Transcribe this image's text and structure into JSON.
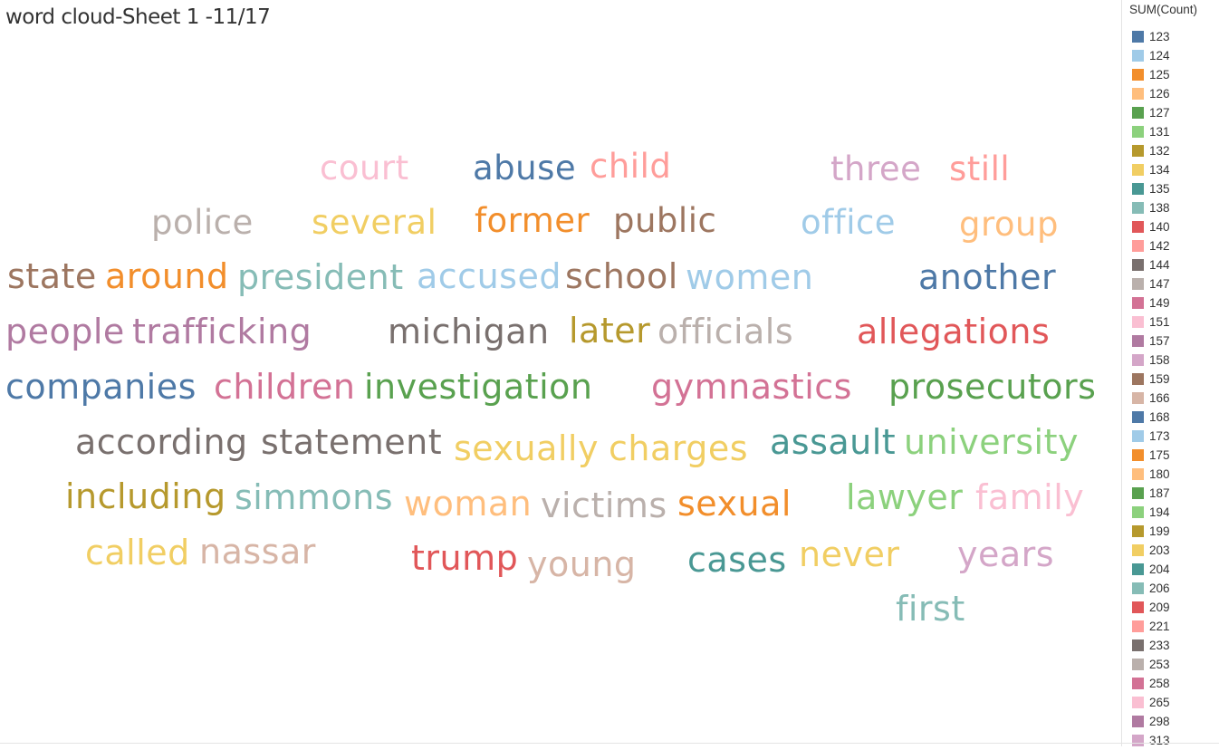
{
  "title": "word cloud-Sheet 1 -11/17",
  "chart_data": {
    "type": "word_cloud",
    "title": "word cloud-Sheet 1 -11/17",
    "legend_title": "SUM(Count)",
    "legend_placement": "right",
    "legend": [
      {
        "value": "123",
        "color": "#4e79a7"
      },
      {
        "value": "124",
        "color": "#a0cbe8"
      },
      {
        "value": "125",
        "color": "#f28e2b"
      },
      {
        "value": "126",
        "color": "#ffbe7d"
      },
      {
        "value": "127",
        "color": "#59a14f"
      },
      {
        "value": "131",
        "color": "#8cd17d"
      },
      {
        "value": "132",
        "color": "#b6992d"
      },
      {
        "value": "134",
        "color": "#f1ce63"
      },
      {
        "value": "135",
        "color": "#499894"
      },
      {
        "value": "138",
        "color": "#86bcb6"
      },
      {
        "value": "140",
        "color": "#e15759"
      },
      {
        "value": "142",
        "color": "#ff9d9a"
      },
      {
        "value": "144",
        "color": "#79706e"
      },
      {
        "value": "147",
        "color": "#bab0ac"
      },
      {
        "value": "149",
        "color": "#d37295"
      },
      {
        "value": "151",
        "color": "#fabfd2"
      },
      {
        "value": "157",
        "color": "#b07aa1"
      },
      {
        "value": "158",
        "color": "#d4a6c8"
      },
      {
        "value": "159",
        "color": "#9d7660"
      },
      {
        "value": "166",
        "color": "#d7b5a6"
      },
      {
        "value": "168",
        "color": "#4e79a7"
      },
      {
        "value": "173",
        "color": "#a0cbe8"
      },
      {
        "value": "175",
        "color": "#f28e2b"
      },
      {
        "value": "180",
        "color": "#ffbe7d"
      },
      {
        "value": "187",
        "color": "#59a14f"
      },
      {
        "value": "194",
        "color": "#8cd17d"
      },
      {
        "value": "199",
        "color": "#b6992d"
      },
      {
        "value": "203",
        "color": "#f1ce63"
      },
      {
        "value": "204",
        "color": "#499894"
      },
      {
        "value": "206",
        "color": "#86bcb6"
      },
      {
        "value": "209",
        "color": "#e15759"
      },
      {
        "value": "221",
        "color": "#ff9d9a"
      },
      {
        "value": "233",
        "color": "#79706e"
      },
      {
        "value": "253",
        "color": "#bab0ac"
      },
      {
        "value": "258",
        "color": "#d37295"
      },
      {
        "value": "265",
        "color": "#fabfd2"
      },
      {
        "value": "298",
        "color": "#b07aa1"
      },
      {
        "value": "313",
        "color": "#d4a6c8"
      }
    ],
    "words": [
      {
        "text": "court",
        "color": "#fabfd2"
      },
      {
        "text": "abuse",
        "color": "#4e79a7"
      },
      {
        "text": "child",
        "color": "#ff9d9a"
      },
      {
        "text": "three",
        "color": "#d4a6c8"
      },
      {
        "text": "still",
        "color": "#ff9d9a"
      },
      {
        "text": "police",
        "color": "#bab0ac"
      },
      {
        "text": "several",
        "color": "#f1ce63"
      },
      {
        "text": "former",
        "color": "#f28e2b"
      },
      {
        "text": "public",
        "color": "#9d7660"
      },
      {
        "text": "office",
        "color": "#a0cbe8"
      },
      {
        "text": "group",
        "color": "#ffbe7d"
      },
      {
        "text": "state",
        "color": "#9d7660"
      },
      {
        "text": "around",
        "color": "#f28e2b"
      },
      {
        "text": "president",
        "color": "#86bcb6"
      },
      {
        "text": "accused",
        "color": "#a0cbe8"
      },
      {
        "text": "school",
        "color": "#9d7660"
      },
      {
        "text": "women",
        "color": "#a0cbe8"
      },
      {
        "text": "another",
        "color": "#4e79a7"
      },
      {
        "text": "people",
        "color": "#b07aa1"
      },
      {
        "text": "trafficking",
        "color": "#b07aa1"
      },
      {
        "text": "michigan",
        "color": "#79706e"
      },
      {
        "text": "later",
        "color": "#b6992d"
      },
      {
        "text": "officials",
        "color": "#bab0ac"
      },
      {
        "text": "allegations",
        "color": "#e15759"
      },
      {
        "text": "companies",
        "color": "#4e79a7"
      },
      {
        "text": "children",
        "color": "#d37295"
      },
      {
        "text": "investigation",
        "color": "#59a14f"
      },
      {
        "text": "gymnastics",
        "color": "#d37295"
      },
      {
        "text": "prosecutors",
        "color": "#59a14f"
      },
      {
        "text": "according",
        "color": "#79706e"
      },
      {
        "text": "statement",
        "color": "#79706e"
      },
      {
        "text": "sexually",
        "color": "#f1ce63"
      },
      {
        "text": "charges",
        "color": "#f1ce63"
      },
      {
        "text": "assault",
        "color": "#499894"
      },
      {
        "text": "university",
        "color": "#8cd17d"
      },
      {
        "text": "including",
        "color": "#b6992d"
      },
      {
        "text": "simmons",
        "color": "#86bcb6"
      },
      {
        "text": "woman",
        "color": "#ffbe7d"
      },
      {
        "text": "victims",
        "color": "#bab0ac"
      },
      {
        "text": "sexual",
        "color": "#f28e2b"
      },
      {
        "text": "lawyer",
        "color": "#8cd17d"
      },
      {
        "text": "family",
        "color": "#fabfd2"
      },
      {
        "text": "called",
        "color": "#f1ce63"
      },
      {
        "text": "nassar",
        "color": "#d7b5a6"
      },
      {
        "text": "trump",
        "color": "#e15759"
      },
      {
        "text": "young",
        "color": "#d7b5a6"
      },
      {
        "text": "cases",
        "color": "#499894"
      },
      {
        "text": "never",
        "color": "#f1ce63"
      },
      {
        "text": "years",
        "color": "#d4a6c8"
      },
      {
        "text": "first",
        "color": "#86bcb6"
      }
    ]
  }
}
